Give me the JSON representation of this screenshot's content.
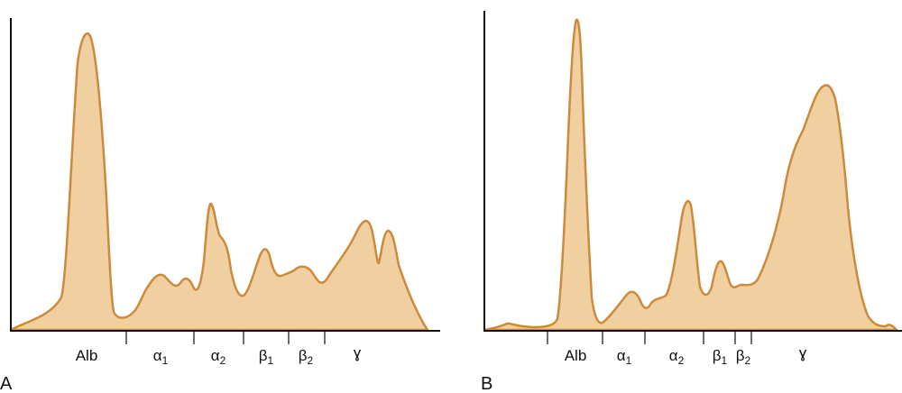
{
  "colors": {
    "fill": "#f0cfa0",
    "stroke": "#cc8a3c",
    "axis": "#111111"
  },
  "panels": [
    {
      "label": "A",
      "bands": [
        {
          "greek": "Alb",
          "sub": ""
        },
        {
          "greek": "α",
          "sub": "1"
        },
        {
          "greek": "α",
          "sub": "2"
        },
        {
          "greek": "β",
          "sub": "1"
        },
        {
          "greek": "β",
          "sub": "2"
        },
        {
          "greek": "ɣ",
          "sub": ""
        }
      ]
    },
    {
      "label": "B",
      "bands": [
        {
          "greek": "Alb",
          "sub": ""
        },
        {
          "greek": "α",
          "sub": "1"
        },
        {
          "greek": "α",
          "sub": "2"
        },
        {
          "greek": "β",
          "sub": "1"
        },
        {
          "greek": "β",
          "sub": "2"
        },
        {
          "greek": "ɣ",
          "sub": ""
        }
      ]
    }
  ]
}
